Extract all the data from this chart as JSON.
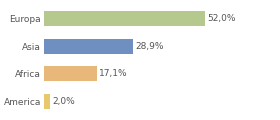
{
  "categories": [
    "Europa",
    "Asia",
    "Africa",
    "America"
  ],
  "values": [
    52.0,
    28.9,
    17.1,
    2.0
  ],
  "labels": [
    "52,0%",
    "28,9%",
    "17,1%",
    "2,0%"
  ],
  "colors": [
    "#b5c98e",
    "#6e8fbf",
    "#e8b87a",
    "#e8c86a"
  ],
  "background_color": "#ffffff",
  "label_fontsize": 6.5,
  "tick_fontsize": 6.5,
  "bar_height": 0.55,
  "xlim": [
    0,
    75
  ]
}
